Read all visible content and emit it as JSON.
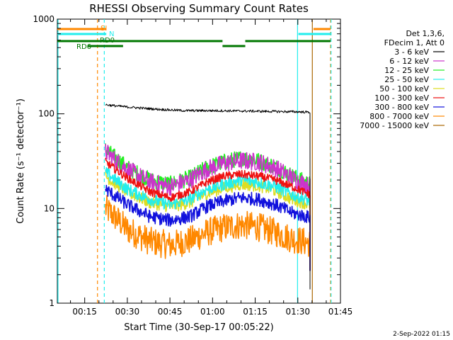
{
  "chart_data": {
    "type": "line",
    "title": "RHESSI Observing Summary Count Rates",
    "xlabel": "Start Time (30-Sep-17 00:05:22)",
    "ylabel": "Count Rate (s⁻¹ detector⁻¹)",
    "y_scale": "log",
    "xlim": [
      5.37,
      105.0
    ],
    "ylim": [
      1,
      1000
    ],
    "x_ticks": [
      {
        "x": 15,
        "label": "00:15"
      },
      {
        "x": 30,
        "label": "00:30"
      },
      {
        "x": 45,
        "label": "00:45"
      },
      {
        "x": 60,
        "label": "01:00"
      },
      {
        "x": 75,
        "label": "01:15"
      },
      {
        "x": 90,
        "label": "01:30"
      },
      {
        "x": 105,
        "label": "01:45"
      }
    ],
    "y_ticks": [
      {
        "y": 1,
        "label": "1"
      },
      {
        "y": 10,
        "label": "10"
      },
      {
        "y": 100,
        "label": "100"
      },
      {
        "y": 1000,
        "label": "1000"
      }
    ],
    "grid": false,
    "legend": {
      "position": "right",
      "header": [
        "Det 1,3,6,",
        "FDecim 1, Att 0"
      ],
      "entries": [
        {
          "name": "3 - 6 keV",
          "color": "#000000"
        },
        {
          "name": "6 - 12 keV",
          "color": "#cc33cc"
        },
        {
          "name": "12 - 25 keV",
          "color": "#22ee22"
        },
        {
          "name": "25 - 50 keV",
          "color": "#22eeee"
        },
        {
          "name": "50 - 100 keV",
          "color": "#dddd22"
        },
        {
          "name": "100 - 300 keV",
          "color": "#ee1111"
        },
        {
          "name": "300 - 800 keV",
          "color": "#1111dd"
        },
        {
          "name": "800 - 7000 keV",
          "color": "#ff8800"
        },
        {
          "name": "7000 - 15000 keV",
          "color": "#aa6600"
        }
      ]
    },
    "data_start_x": 22.3,
    "data_end_x": 94.3,
    "series": [
      {
        "name": "3 - 6 keV",
        "color": "#000000",
        "x": [
          22.3,
          25,
          30,
          40,
          50,
          60,
          70,
          80,
          90,
          94.3
        ],
        "y": [
          125,
          122,
          118,
          112,
          108,
          108,
          107,
          106,
          105,
          104
        ]
      },
      {
        "name": "6 - 12 keV",
        "color": "#cc33cc",
        "x": [
          22.3,
          25,
          30,
          38,
          45,
          52,
          58,
          64,
          70,
          76,
          82,
          88,
          94.3
        ],
        "y": [
          40,
          34,
          26,
          19,
          17,
          20,
          26,
          30,
          32,
          31,
          27,
          21,
          17
        ]
      },
      {
        "name": "12 - 25 keV",
        "color": "#22ee22",
        "x": [
          22.3,
          25,
          30,
          38,
          45,
          52,
          58,
          64,
          70,
          76,
          82,
          88,
          94.3
        ],
        "y": [
          42,
          36,
          27,
          20,
          18,
          21,
          27,
          31,
          34,
          32,
          28,
          22,
          18
        ]
      },
      {
        "name": "25 - 50 keV",
        "color": "#22eeee",
        "x": [
          22.3,
          25,
          30,
          38,
          45,
          52,
          58,
          64,
          70,
          76,
          82,
          88,
          94.3
        ],
        "y": [
          24,
          21,
          16,
          12.5,
          11,
          12.5,
          16,
          18,
          20,
          19,
          17,
          14,
          12
        ]
      },
      {
        "name": "50 - 100 keV",
        "color": "#dddd22",
        "x": [
          22.3,
          25,
          30,
          38,
          45,
          52,
          58,
          64,
          70,
          76,
          82,
          88,
          94.3
        ],
        "y": [
          22,
          19,
          15,
          11.5,
          10.5,
          11.5,
          14.5,
          16.5,
          18,
          17.5,
          15.5,
          12.5,
          11
        ]
      },
      {
        "name": "100 - 300 keV",
        "color": "#ee1111",
        "x": [
          22.3,
          25,
          30,
          38,
          45,
          52,
          58,
          64,
          70,
          76,
          82,
          88,
          94.3
        ],
        "y": [
          31,
          27,
          21,
          15,
          13,
          15,
          19,
          22,
          23,
          22,
          20,
          17,
          14
        ]
      },
      {
        "name": "300 - 800 keV",
        "color": "#1111dd",
        "x": [
          22.3,
          25,
          30,
          38,
          45,
          52,
          58,
          64,
          70,
          76,
          82,
          88,
          94.3
        ],
        "y": [
          16,
          14,
          11,
          8.2,
          7.5,
          8.2,
          10.5,
          12,
          13,
          12.5,
          11,
          9,
          8
        ]
      },
      {
        "name": "800 - 7000 keV",
        "color": "#ff8800",
        "x": [
          22.3,
          25,
          30,
          38,
          45,
          52,
          58,
          64,
          70,
          76,
          82,
          88,
          94.3
        ],
        "y": [
          10,
          8.5,
          6,
          4.5,
          4.1,
          4.6,
          5.6,
          6.3,
          6.7,
          6.4,
          5.6,
          4.8,
          4.3
        ]
      }
    ],
    "attenuator_bars": [
      {
        "label": "SI",
        "color": "#ff8800",
        "segments": [
          [
            5.37,
            22.6
          ],
          [
            95.5,
            101.5
          ]
        ]
      },
      {
        "label": "N",
        "color": "#22eeee",
        "segments": [
          [
            5.37,
            22.6
          ],
          [
            90.2,
            101.5
          ]
        ]
      },
      {
        "label": "RD0",
        "color": "#007700",
        "segments": [
          [
            5.37,
            63.5
          ],
          [
            71.5,
            101.5
          ]
        ]
      },
      {
        "label": "RD6",
        "color": "#007700",
        "segments": [
          [
            16.0,
            28.5
          ],
          [
            63.5,
            71.5
          ]
        ]
      }
    ],
    "vertical_markers": [
      {
        "x": 5.6,
        "color": "#22eeee",
        "style": "solid"
      },
      {
        "x": 19.5,
        "color": "#ff8800",
        "style": "dashed"
      },
      {
        "x": 21.9,
        "color": "#22eeee",
        "style": "dashed"
      },
      {
        "x": 89.9,
        "color": "#22eeee",
        "style": "solid"
      },
      {
        "x": 95.1,
        "color": "#aa6600",
        "style": "solid"
      },
      {
        "x": 101.5,
        "color": "#ff8800",
        "style": "dashed"
      },
      {
        "x": 101.7,
        "color": "#22eeee",
        "style": "dashed"
      }
    ],
    "footer_stamp": "2-Sep-2022 01:15"
  }
}
